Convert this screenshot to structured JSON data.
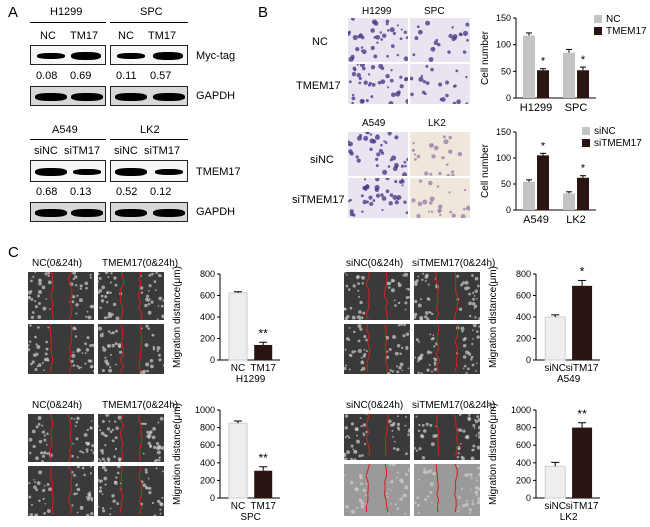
{
  "panels": {
    "a": "A",
    "b": "B",
    "c": "C"
  },
  "panelA": {
    "top": {
      "cells": [
        "H1299",
        "SPC"
      ],
      "lanes": [
        "NC",
        "TM17",
        "NC",
        "TM17"
      ],
      "blot_label": "Myc-tag",
      "values": [
        "0.08",
        "0.69",
        "0.11",
        "0.57"
      ],
      "control_label": "GAPDH",
      "myc_intensity": [
        0.08,
        0.69,
        0.11,
        0.57
      ]
    },
    "bottom": {
      "cells": [
        "A549",
        "LK2"
      ],
      "lanes": [
        "siNC",
        "siTM17",
        "siNC",
        "siTM17"
      ],
      "blot_label": "TMEM17",
      "values": [
        "0.68",
        "0.13",
        "0.52",
        "0.12"
      ],
      "control_label": "GAPDH",
      "tmem_intensity": [
        0.68,
        0.13,
        0.52,
        0.12
      ]
    }
  },
  "panelB": {
    "top_images": {
      "cols": [
        "H1299",
        "SPC"
      ],
      "rows": [
        "NC",
        "TMEM17"
      ]
    },
    "bottom_images": {
      "cols": [
        "A549",
        "LK2"
      ],
      "rows": [
        "siNC",
        "siTMEM17"
      ]
    }
  },
  "panelC": {
    "h1299": {
      "headers": [
        "NC(0&24h)",
        "TMEM17(0&24h)"
      ]
    },
    "a549": {
      "headers": [
        "siNC(0&24h)",
        "siTMEM17(0&24h)"
      ]
    },
    "spc": {
      "headers": [
        "NC(0&24h)",
        "TMEM17(0&24h)"
      ]
    },
    "lk2": {
      "headers": [
        "siNC(0&24h)",
        "siTMEM17(0&24h)"
      ]
    }
  },
  "chart_data": [
    {
      "id": "b-top",
      "type": "bar",
      "ylabel": "Cell number",
      "categories": [
        "H1299",
        "SPC"
      ],
      "ylim": [
        0,
        150
      ],
      "yticks": [
        "0",
        "50",
        "100",
        "150"
      ],
      "legend": [
        "NC",
        "TMEM17"
      ],
      "legend_colors": [
        "#c4c4c4",
        "#2a1512"
      ],
      "series": [
        {
          "name": "NC",
          "values": [
            117,
            85
          ],
          "errors": [
            5,
            6
          ],
          "color": "#c4c4c4"
        },
        {
          "name": "TMEM17",
          "values": [
            52,
            52
          ],
          "errors": [
            3,
            6
          ],
          "color": "#2a1512"
        }
      ],
      "annotations": [
        "*",
        "*"
      ]
    },
    {
      "id": "b-bottom",
      "type": "bar",
      "ylabel": "Cell number",
      "categories": [
        "A549",
        "LK2"
      ],
      "ylim": [
        0,
        150
      ],
      "yticks": [
        "0",
        "50",
        "100",
        "150"
      ],
      "legend": [
        "siNC",
        "siTMEM17"
      ],
      "legend_colors": [
        "#c4c4c4",
        "#2a1512"
      ],
      "series": [
        {
          "name": "siNC",
          "values": [
            54,
            32
          ],
          "errors": [
            4,
            3
          ],
          "color": "#c4c4c4"
        },
        {
          "name": "siTMEM17",
          "values": [
            105,
            62
          ],
          "errors": [
            4,
            4
          ],
          "color": "#2a1512"
        }
      ],
      "annotations": [
        "*",
        "*"
      ]
    },
    {
      "id": "c-h1299",
      "type": "bar",
      "ylabel": "Migration distance(μm)",
      "categories": [
        "NC",
        "TM17"
      ],
      "cell_label": "H1299",
      "ylim": [
        0,
        800
      ],
      "yticks": [
        "0",
        "200",
        "400",
        "600",
        "800"
      ],
      "values": [
        625,
        140
      ],
      "errors": [
        10,
        25
      ],
      "colors": [
        "#eeeeee",
        "#2a1512"
      ],
      "annotation": "**"
    },
    {
      "id": "c-a549",
      "type": "bar",
      "ylabel": "Migration distance(μm)",
      "categories": [
        "siNC",
        "siTM17"
      ],
      "cell_label": "A549",
      "ylim": [
        0,
        800
      ],
      "yticks": [
        "0",
        "200",
        "400",
        "600",
        "800"
      ],
      "values": [
        400,
        690
      ],
      "errors": [
        20,
        50
      ],
      "colors": [
        "#eeeeee",
        "#2a1512"
      ],
      "annotation": "*"
    },
    {
      "id": "c-spc",
      "type": "bar",
      "ylabel": "Migration distance(μm)",
      "categories": [
        "NC",
        "TM17"
      ],
      "cell_label": "SPC",
      "ylim": [
        0,
        1000
      ],
      "yticks": [
        "0",
        "200",
        "400",
        "600",
        "800",
        "1000"
      ],
      "values": [
        850,
        310
      ],
      "errors": [
        25,
        45
      ],
      "colors": [
        "#eeeeee",
        "#2a1512"
      ],
      "annotation": "**"
    },
    {
      "id": "c-lk2",
      "type": "bar",
      "ylabel": "Migration distance(μm)",
      "categories": [
        "siNC",
        "siTM17"
      ],
      "cell_label": "LK2",
      "ylim": [
        0,
        1000
      ],
      "yticks": [
        "0",
        "200",
        "400",
        "600",
        "800",
        "1000"
      ],
      "values": [
        360,
        800
      ],
      "errors": [
        45,
        55
      ],
      "colors": [
        "#eeeeee",
        "#2a1512"
      ],
      "annotation": "**"
    }
  ]
}
